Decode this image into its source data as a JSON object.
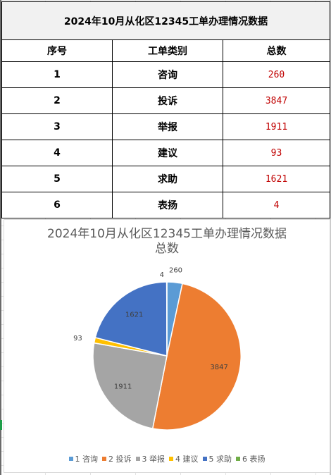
{
  "table": {
    "title": "2024年10月从化区12345工单办理情况数据",
    "headers": [
      "序号",
      "工单类别",
      "总数"
    ],
    "rows": [
      {
        "seq": "1",
        "category": "咨询",
        "total": "260"
      },
      {
        "seq": "2",
        "category": "投诉",
        "total": "3847"
      },
      {
        "seq": "3",
        "category": "举报",
        "total": "1911"
      },
      {
        "seq": "4",
        "category": "建议",
        "total": "93"
      },
      {
        "seq": "5",
        "category": "求助",
        "total": "1621"
      },
      {
        "seq": "6",
        "category": "表扬",
        "total": "4"
      }
    ]
  },
  "chart_data": {
    "type": "pie",
    "title": "2024年10月从化区12345工单办理情况数据",
    "subtitle": "总数",
    "categories": [
      "1 咨询",
      "2 投诉",
      "3 举报",
      "4 建议",
      "5 求助",
      "6 表扬"
    ],
    "values": [
      260,
      3847,
      1911,
      93,
      1621,
      4
    ],
    "data_labels": [
      "260",
      "3847",
      "1911",
      "93",
      "1621",
      "4"
    ],
    "colors": [
      "#5b9bd5",
      "#ed7d31",
      "#a5a5a5",
      "#ffc000",
      "#4472c4",
      "#70ad47"
    ],
    "legend_position": "bottom",
    "start_angle_deg": 0,
    "direction": "clockwise"
  }
}
